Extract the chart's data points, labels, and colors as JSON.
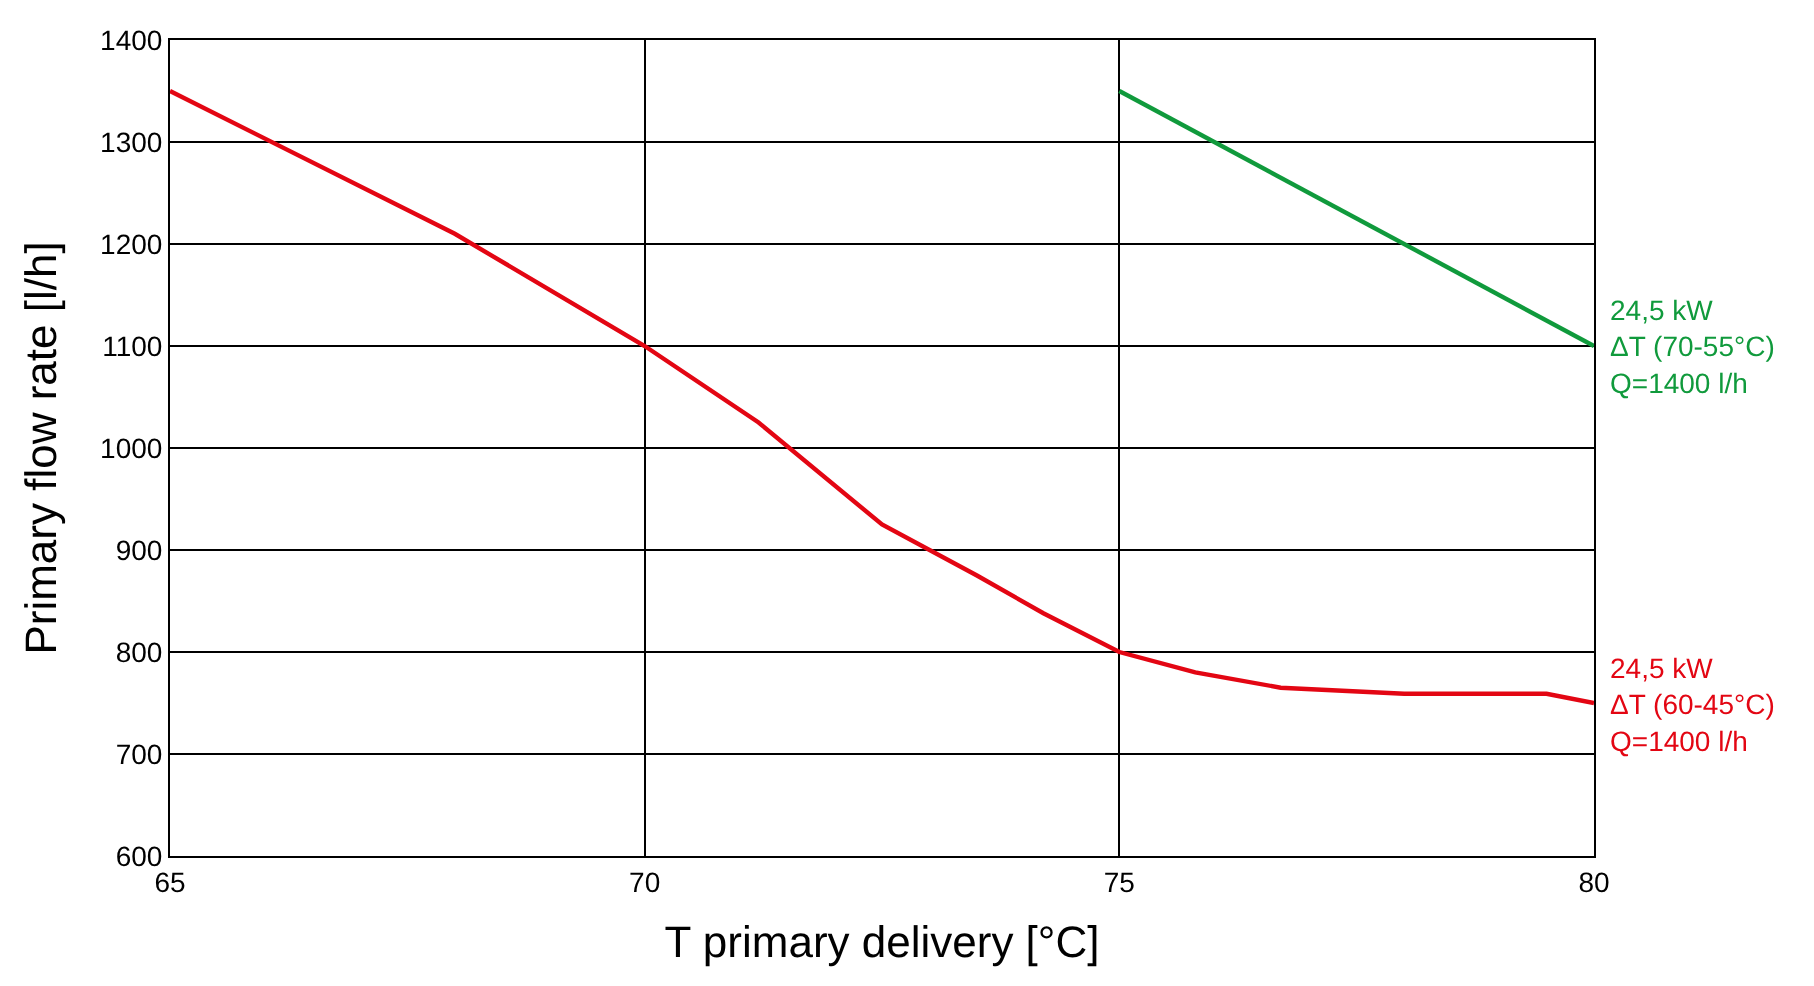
{
  "chart_data": {
    "type": "line",
    "xlabel": "T primary delivery [°C]",
    "ylabel": "Primary flow rate [l/h]",
    "xlim": [
      65,
      80
    ],
    "xticks": [
      65,
      70,
      75,
      80
    ],
    "ylim": [
      600,
      1400
    ],
    "yticks": [
      600,
      700,
      800,
      900,
      1000,
      1100,
      1200,
      1300,
      1400
    ],
    "grid": true,
    "legend": false,
    "marker": "none",
    "line_style": "solid",
    "series": [
      {
        "name": "24,5 kW\nΔT (70-55°C)\nQ=1400 l/h",
        "color": "#109a3c",
        "x": [
          75,
          80
        ],
        "values": [
          1350,
          1100
        ]
      },
      {
        "name": "24,5 kW\nΔT (60-45°C)\nQ=1400 l/h",
        "color": "#e30613",
        "x": [
          65,
          68,
          70,
          71.2,
          72.5,
          73.5,
          74.2,
          75,
          75.8,
          76.7,
          78,
          79.5,
          80
        ],
        "values": [
          1350,
          1210,
          1100,
          1025,
          925,
          875,
          838,
          800,
          780,
          765,
          759,
          759,
          750
        ]
      }
    ]
  }
}
